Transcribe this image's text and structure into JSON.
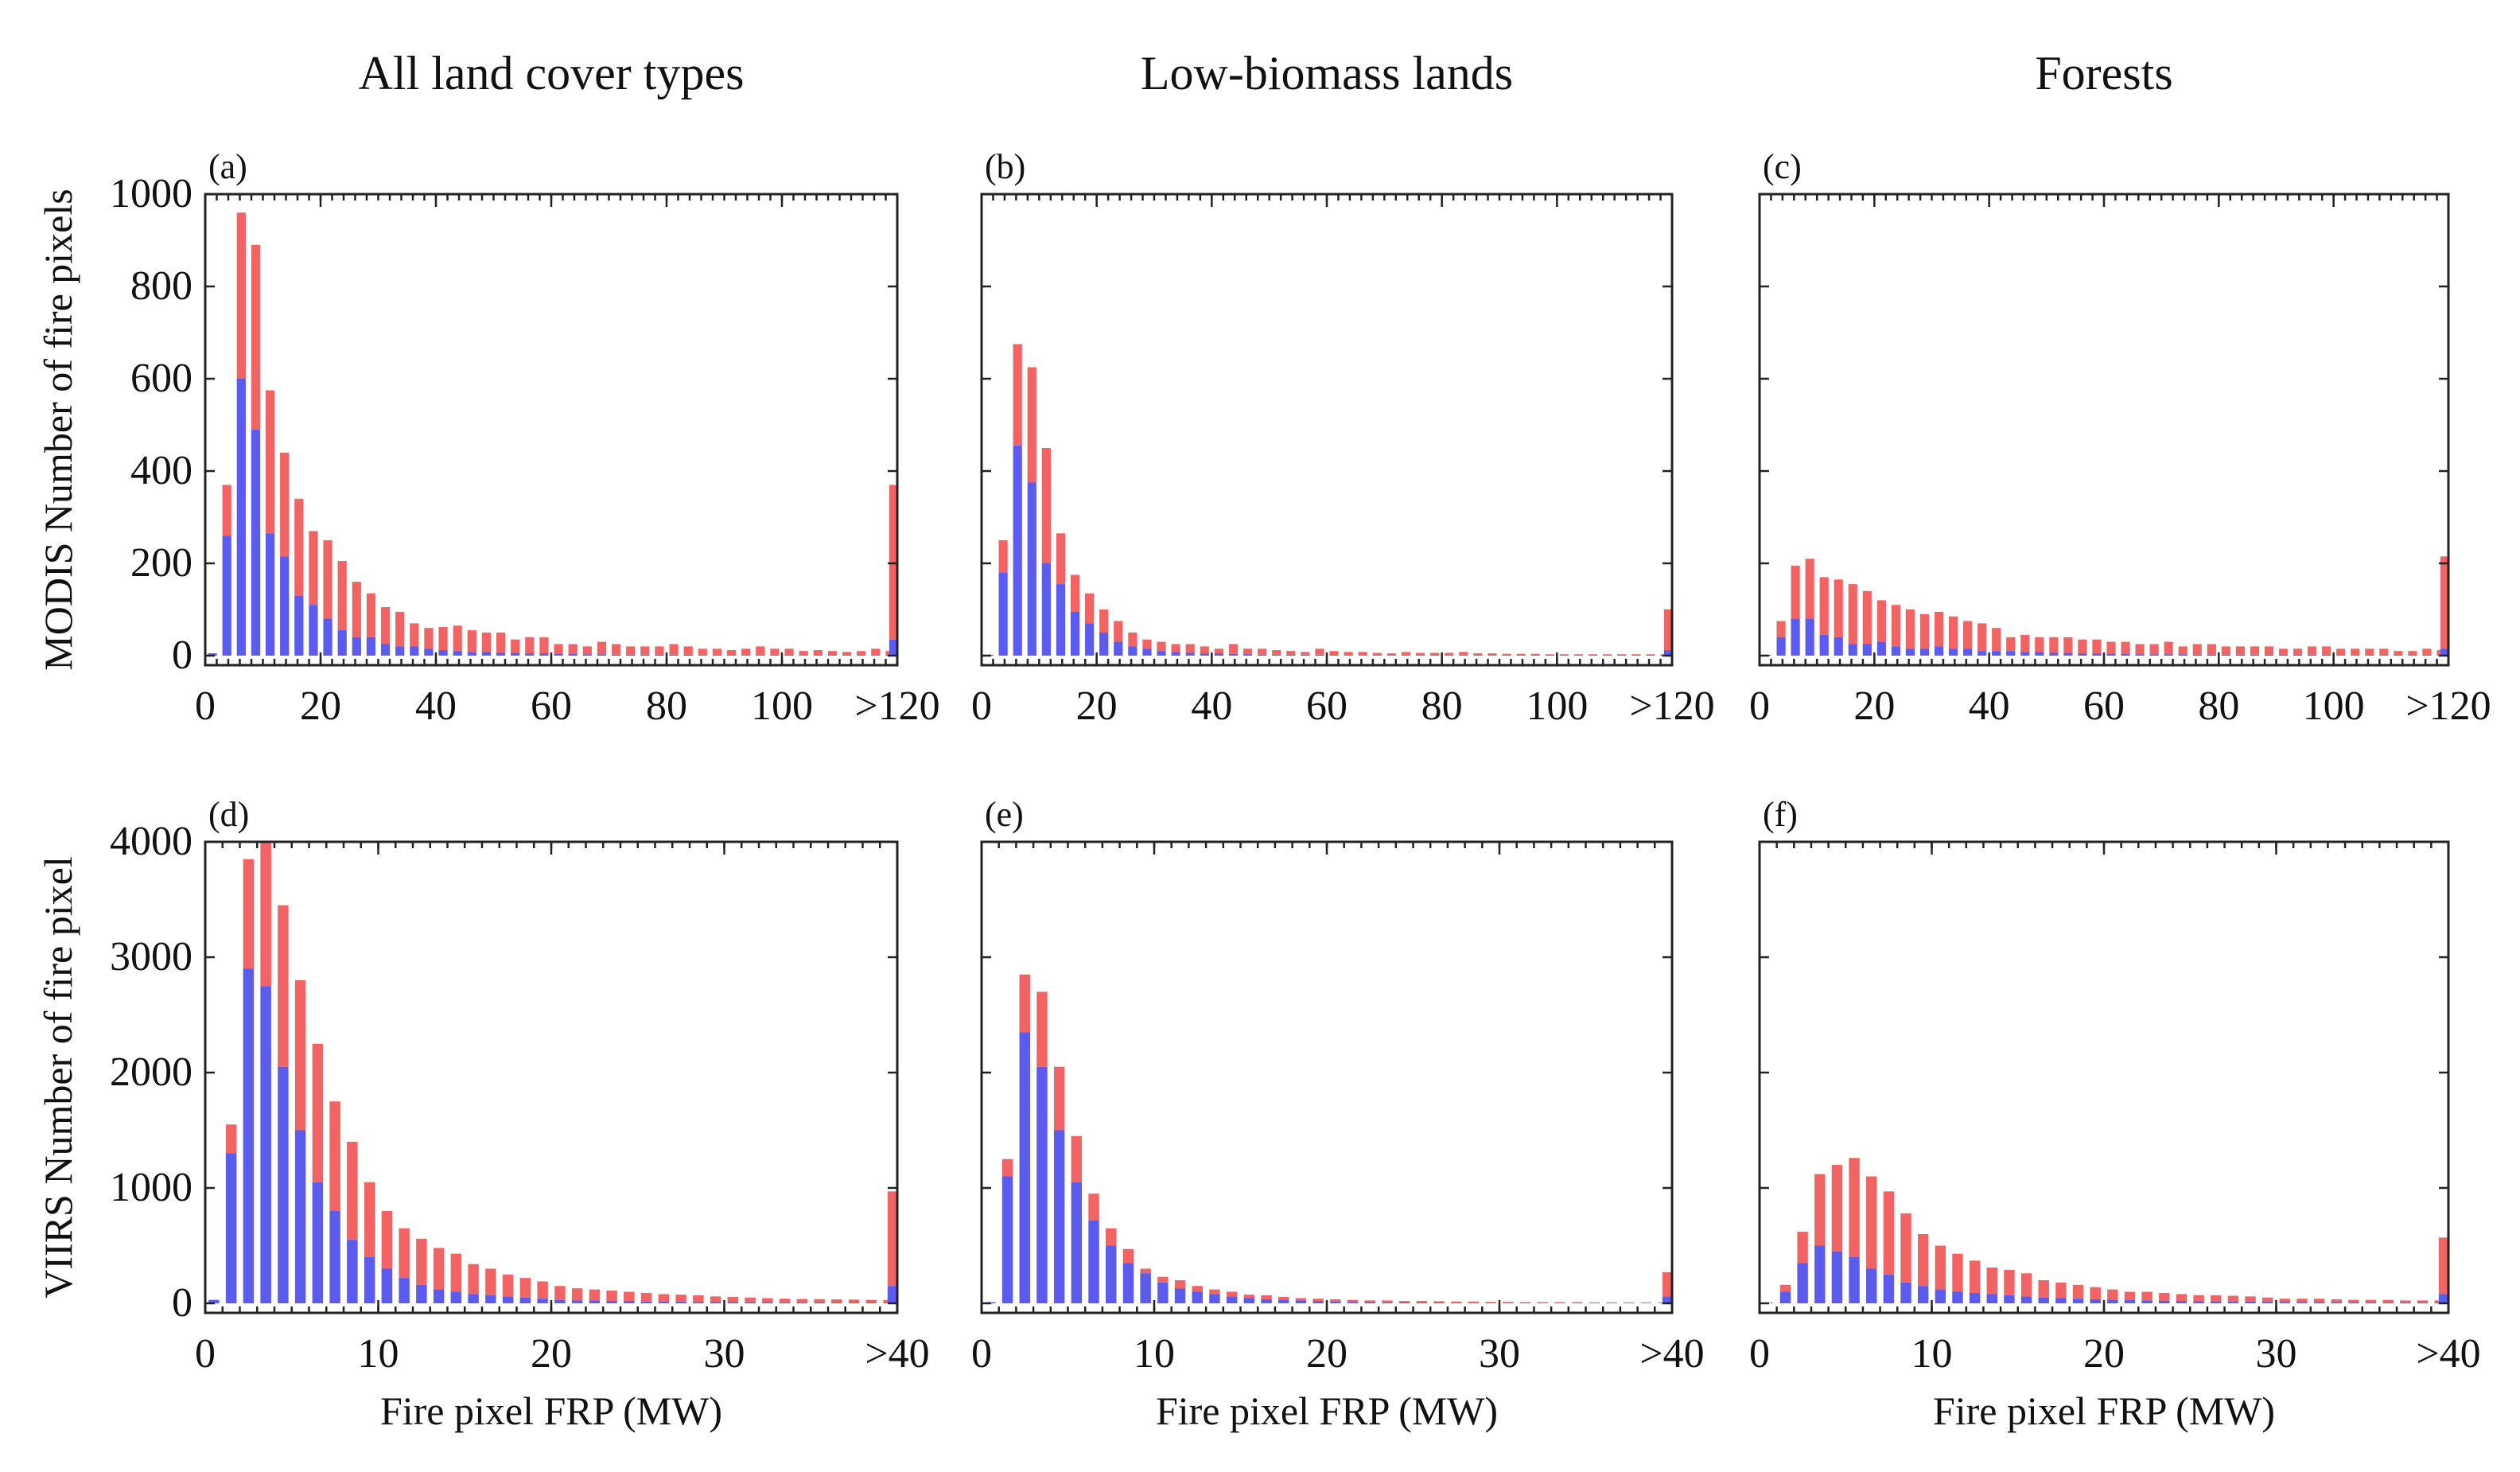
{
  "figure": {
    "column_titles": [
      "All land cover types",
      "Low-biomass lands",
      "Forests"
    ],
    "row_ylabels": [
      "MODIS Number of fire pixels",
      "VIIRS Number of fire pixel"
    ],
    "xlabel": "Fire pixel FRP (MW)",
    "colors": {
      "series_lower": "#5b5bf0",
      "series_upper": "#f26464"
    }
  },
  "chart_data": [
    {
      "panel": "(a)",
      "column": "All land cover types",
      "sensor": "MODIS",
      "type": "bar",
      "stacked": true,
      "ylabel": "MODIS Number of fire pixels",
      "xlabel": "",
      "xlim": [
        0,
        120
      ],
      "ylim": [
        0,
        1000
      ],
      "bin_width": 2.5,
      "xticks": [
        0,
        20,
        40,
        60,
        80,
        100,
        120
      ],
      "xticklabels": [
        "0",
        "20",
        "40",
        "60",
        "80",
        "100",
        ">120"
      ],
      "yticks": [
        0,
        200,
        400,
        600,
        800,
        1000
      ],
      "yticklabels": [
        "0",
        "200",
        "400",
        "600",
        "800",
        "1000"
      ],
      "lower_values": [
        5,
        260,
        600,
        490,
        265,
        215,
        130,
        110,
        80,
        55,
        40,
        40,
        25,
        20,
        20,
        15,
        12,
        10,
        8,
        8,
        6,
        6,
        5,
        5,
        4,
        4,
        3,
        3,
        2,
        2,
        2,
        2,
        2,
        2,
        1,
        1,
        1,
        1,
        1,
        1,
        1,
        1,
        1,
        1,
        1,
        1,
        1,
        2,
        35
      ],
      "totals": [
        5,
        370,
        960,
        890,
        575,
        440,
        340,
        270,
        250,
        205,
        160,
        135,
        105,
        95,
        70,
        60,
        62,
        65,
        55,
        50,
        50,
        35,
        40,
        40,
        25,
        25,
        20,
        30,
        25,
        20,
        20,
        20,
        25,
        20,
        15,
        15,
        12,
        15,
        20,
        15,
        15,
        10,
        12,
        10,
        8,
        10,
        15,
        10,
        370
      ]
    },
    {
      "panel": "(b)",
      "column": "Low-biomass lands",
      "sensor": "MODIS",
      "type": "bar",
      "stacked": true,
      "ylabel": "",
      "xlabel": "",
      "xlim": [
        0,
        120
      ],
      "ylim": [
        0,
        1000
      ],
      "bin_width": 2.5,
      "xticks": [
        0,
        20,
        40,
        60,
        80,
        100,
        120
      ],
      "xticklabels": [
        "0",
        "20",
        "40",
        "60",
        "80",
        "100",
        ">120"
      ],
      "yticks": [
        0,
        200,
        400,
        600,
        800,
        1000
      ],
      "yticklabels": [],
      "lower_values": [
        2,
        180,
        455,
        375,
        200,
        155,
        95,
        70,
        50,
        30,
        20,
        15,
        10,
        8,
        6,
        5,
        5,
        4,
        3,
        2,
        2,
        2,
        2,
        2,
        1,
        1,
        1,
        1,
        1,
        1,
        1,
        1,
        1,
        1,
        1,
        1,
        1,
        1,
        1,
        1,
        1,
        1,
        1,
        1,
        1,
        1,
        1,
        1,
        12
      ],
      "totals": [
        2,
        250,
        675,
        625,
        450,
        265,
        175,
        135,
        100,
        75,
        50,
        35,
        30,
        25,
        25,
        20,
        15,
        25,
        15,
        15,
        12,
        10,
        8,
        15,
        10,
        8,
        8,
        6,
        5,
        8,
        6,
        6,
        6,
        8,
        5,
        5,
        4,
        4,
        4,
        3,
        3,
        3,
        3,
        3,
        3,
        3,
        3,
        3,
        100
      ]
    },
    {
      "panel": "(c)",
      "column": "Forests",
      "sensor": "MODIS",
      "type": "bar",
      "stacked": true,
      "ylabel": "",
      "xlabel": "",
      "xlim": [
        0,
        120
      ],
      "ylim": [
        0,
        1000
      ],
      "bin_width": 2.5,
      "xticks": [
        0,
        20,
        40,
        60,
        80,
        100,
        120
      ],
      "xticklabels": [
        "0",
        "20",
        "40",
        "60",
        "80",
        "100",
        ">120"
      ],
      "yticks": [
        0,
        200,
        400,
        600,
        800,
        1000
      ],
      "yticklabels": [],
      "lower_values": [
        2,
        40,
        80,
        80,
        45,
        40,
        25,
        25,
        30,
        20,
        15,
        15,
        20,
        15,
        15,
        10,
        10,
        10,
        8,
        8,
        6,
        6,
        5,
        5,
        4,
        4,
        3,
        3,
        3,
        3,
        2,
        2,
        2,
        2,
        2,
        2,
        2,
        2,
        2,
        2,
        1,
        1,
        1,
        1,
        1,
        1,
        1,
        1,
        15
      ],
      "totals": [
        2,
        75,
        195,
        210,
        170,
        165,
        155,
        140,
        120,
        110,
        100,
        90,
        95,
        85,
        75,
        70,
        60,
        40,
        45,
        40,
        40,
        40,
        35,
        35,
        30,
        30,
        25,
        25,
        30,
        20,
        25,
        25,
        20,
        20,
        20,
        20,
        15,
        15,
        20,
        20,
        15,
        15,
        15,
        15,
        10,
        10,
        15,
        12,
        215
      ]
    },
    {
      "panel": "(d)",
      "column": "All land cover types",
      "sensor": "VIIRS",
      "type": "bar",
      "stacked": true,
      "ylabel": "VIIRS Number of fire pixel",
      "xlabel": "Fire pixel FRP (MW)",
      "xlim": [
        0,
        40
      ],
      "ylim": [
        0,
        4000
      ],
      "bin_width": 1,
      "xticks": [
        0,
        10,
        20,
        30,
        40
      ],
      "xticklabels": [
        "0",
        "10",
        "20",
        "30",
        ">40"
      ],
      "yticks": [
        0,
        1000,
        2000,
        3000,
        4000
      ],
      "yticklabels": [
        "0",
        "1000",
        "2000",
        "3000",
        "4000"
      ],
      "lower_values": [
        30,
        1300,
        2900,
        2750,
        2050,
        1500,
        1050,
        800,
        550,
        400,
        300,
        220,
        160,
        120,
        100,
        80,
        70,
        60,
        50,
        40,
        30,
        25,
        25,
        20,
        20,
        15,
        15,
        15,
        10,
        10,
        10,
        10,
        10,
        8,
        8,
        8,
        6,
        6,
        6,
        6,
        150
      ],
      "totals": [
        30,
        1550,
        3850,
        4000,
        3450,
        2800,
        2250,
        1750,
        1400,
        1050,
        800,
        650,
        560,
        480,
        430,
        340,
        300,
        250,
        220,
        190,
        150,
        130,
        120,
        110,
        100,
        90,
        80,
        75,
        70,
        60,
        55,
        50,
        45,
        40,
        38,
        36,
        34,
        32,
        30,
        28,
        970
      ]
    },
    {
      "panel": "(e)",
      "column": "Low-biomass lands",
      "sensor": "VIIRS",
      "type": "bar",
      "stacked": true,
      "ylabel": "",
      "xlabel": "Fire pixel FRP (MW)",
      "xlim": [
        0,
        40
      ],
      "ylim": [
        0,
        4000
      ],
      "bin_width": 1,
      "xticks": [
        0,
        10,
        20,
        30,
        40
      ],
      "xticklabels": [
        "0",
        "10",
        "20",
        "30",
        ">40"
      ],
      "yticks": [
        0,
        1000,
        2000,
        3000,
        4000
      ],
      "yticklabels": [],
      "lower_values": [
        10,
        1100,
        2350,
        2050,
        1500,
        1050,
        720,
        500,
        350,
        260,
        180,
        130,
        100,
        80,
        60,
        45,
        35,
        30,
        25,
        20,
        15,
        12,
        10,
        8,
        8,
        6,
        6,
        5,
        5,
        4,
        4,
        4,
        3,
        3,
        3,
        3,
        3,
        2,
        2,
        2,
        60
      ],
      "totals": [
        10,
        1250,
        2850,
        2700,
        2050,
        1450,
        950,
        650,
        470,
        300,
        230,
        200,
        150,
        120,
        100,
        75,
        70,
        55,
        45,
        40,
        35,
        30,
        25,
        25,
        20,
        20,
        18,
        15,
        15,
        12,
        12,
        10,
        10,
        10,
        10,
        8,
        8,
        8,
        8,
        8,
        270
      ]
    },
    {
      "panel": "(f)",
      "column": "Forests",
      "sensor": "VIIRS",
      "type": "bar",
      "stacked": true,
      "ylabel": "",
      "xlabel": "Fire pixel FRP (MW)",
      "xlim": [
        0,
        40
      ],
      "ylim": [
        0,
        4000
      ],
      "bin_width": 1,
      "xticks": [
        0,
        10,
        20,
        30,
        40
      ],
      "xticklabels": [
        "0",
        "10",
        "20",
        "30",
        ">40"
      ],
      "yticks": [
        0,
        1000,
        2000,
        3000,
        4000
      ],
      "yticklabels": [],
      "lower_values": [
        5,
        100,
        350,
        500,
        450,
        400,
        300,
        250,
        180,
        150,
        120,
        100,
        90,
        80,
        70,
        60,
        50,
        45,
        40,
        35,
        30,
        28,
        25,
        22,
        20,
        18,
        16,
        15,
        14,
        13,
        12,
        11,
        10,
        10,
        9,
        9,
        8,
        8,
        8,
        8,
        80
      ],
      "totals": [
        5,
        160,
        620,
        1120,
        1200,
        1260,
        1100,
        970,
        780,
        600,
        500,
        430,
        370,
        310,
        290,
        260,
        200,
        180,
        160,
        140,
        120,
        100,
        100,
        90,
        80,
        70,
        70,
        65,
        60,
        50,
        40,
        40,
        40,
        35,
        30,
        30,
        30,
        25,
        25,
        25,
        570
      ]
    }
  ]
}
